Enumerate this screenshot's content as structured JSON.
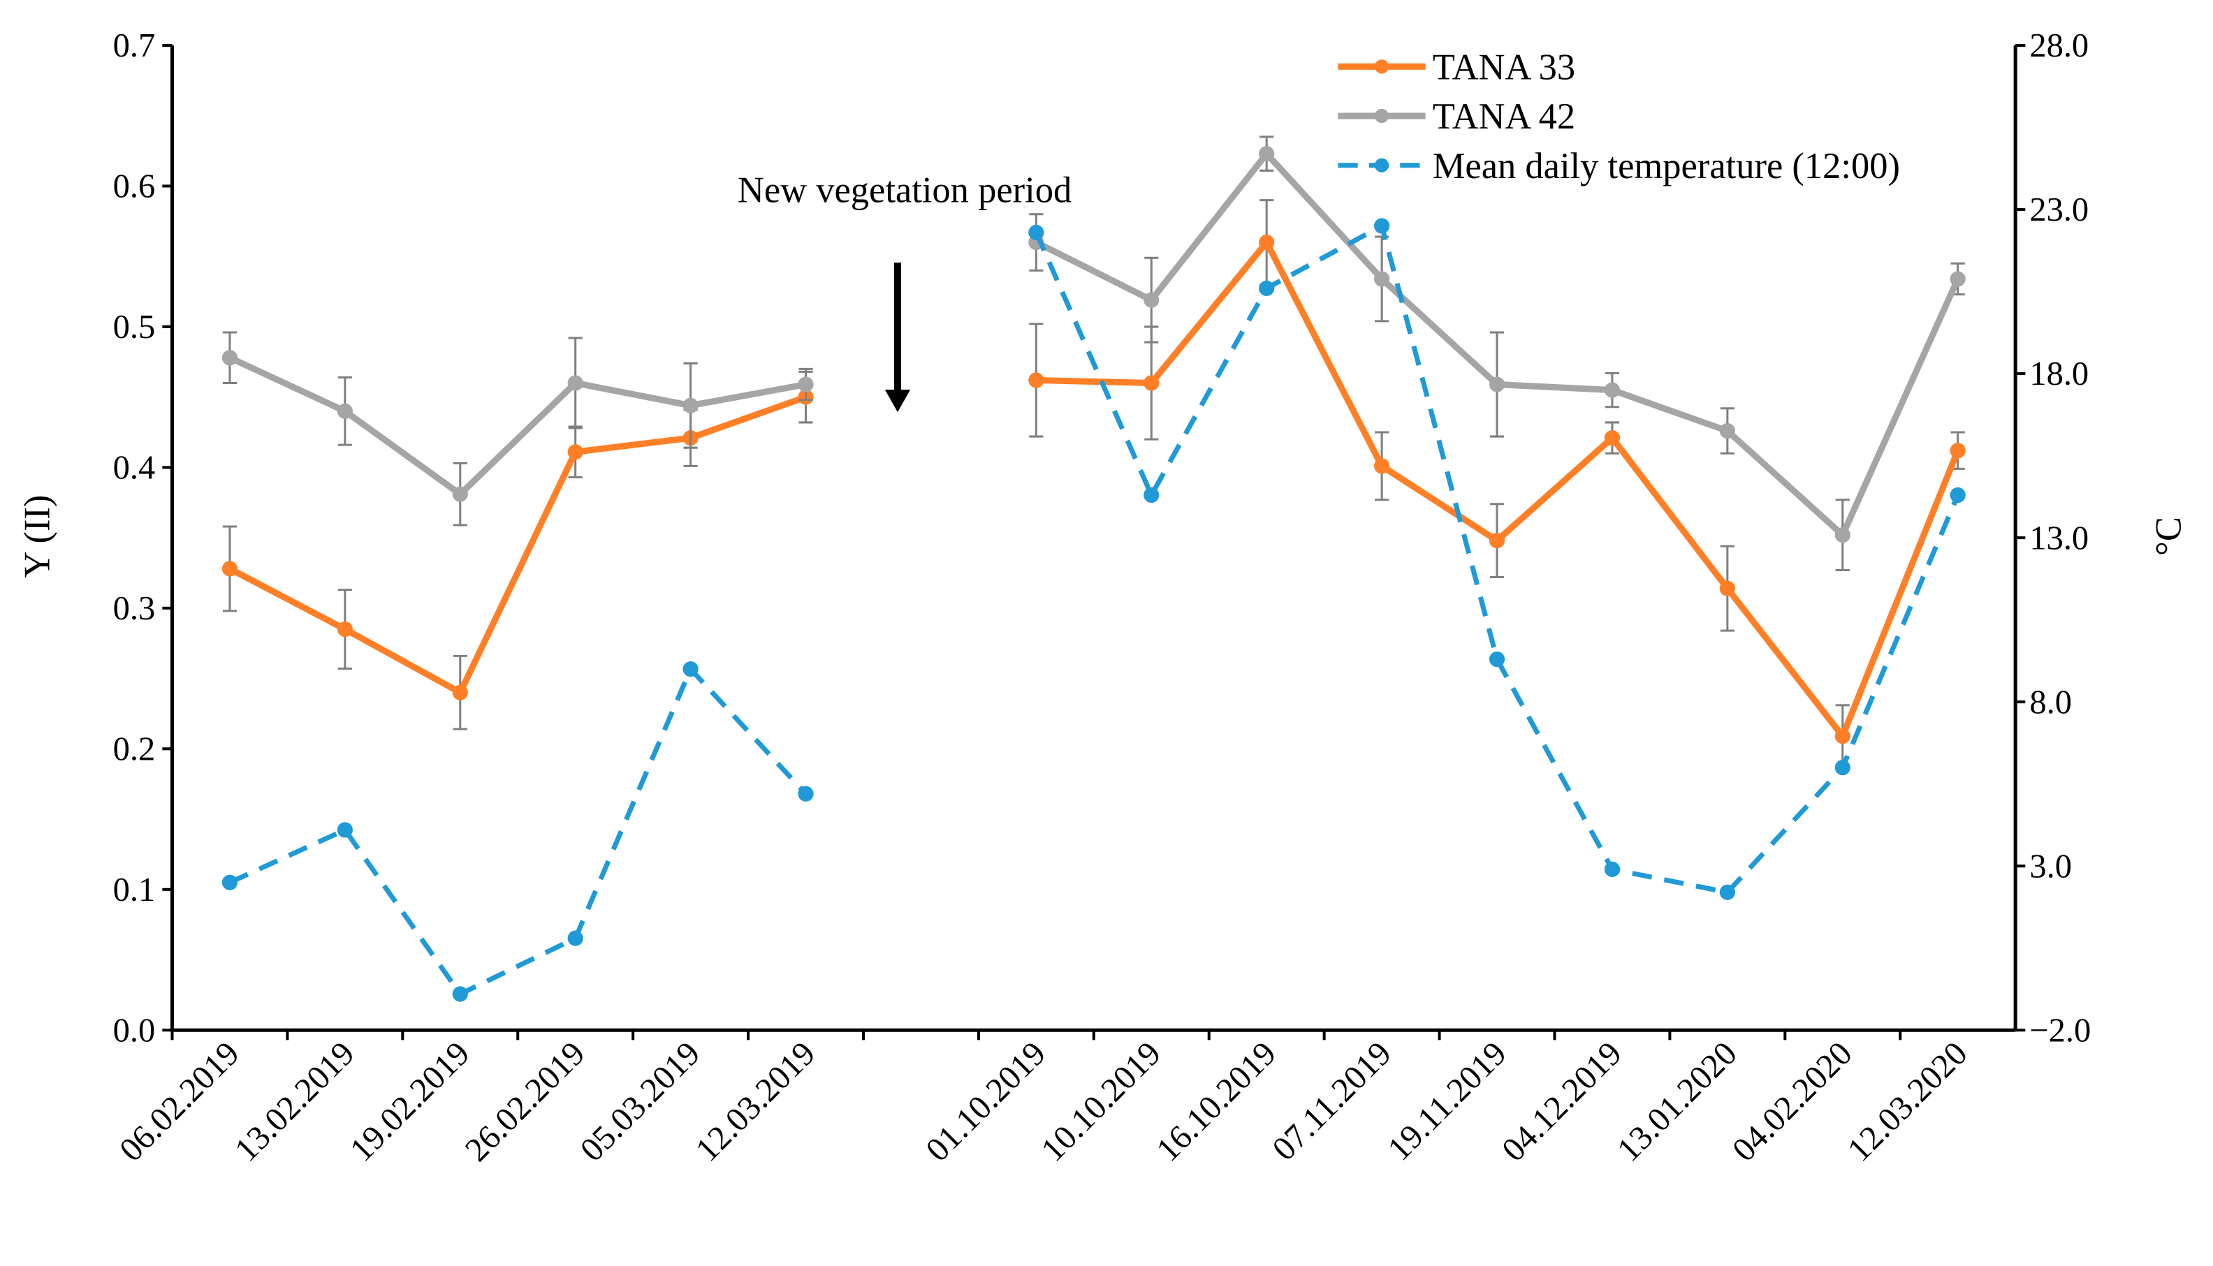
{
  "chart_data": {
    "type": "line",
    "title": "",
    "xlabel": "",
    "ylabel": "Y (II)",
    "y2label": "°C",
    "ylim": [
      0,
      0.7
    ],
    "y2lim": [
      -2,
      28
    ],
    "yticks": [
      "0.0",
      "0.1",
      "0.2",
      "0.3",
      "0.4",
      "0.5",
      "0.6",
      "0.7"
    ],
    "y2ticks": [
      "−2.0",
      "3.0",
      "8.0",
      "13.0",
      "18.0",
      "23.0",
      "28.0"
    ],
    "categories": [
      "06.02.2019",
      "13.02.2019",
      "19.02.2019",
      "26.02.2019",
      "05.03.2019",
      "12.03.2019",
      "",
      "01.10.2019",
      "10.10.2019",
      "16.10.2019",
      "07.11.2019",
      "19.11.2019",
      "04.12.2019",
      "13.01.2020",
      "04.02.2020",
      "12.03.2020"
    ],
    "series": [
      {
        "name": "TANA 33",
        "axis": "left",
        "color": "#FF7F27",
        "style": "solid",
        "values": [
          0.328,
          0.285,
          0.24,
          0.411,
          0.421,
          0.45,
          null,
          0.462,
          0.46,
          0.56,
          0.401,
          0.348,
          0.421,
          0.314,
          0.209,
          0.412
        ],
        "errors": [
          0.03,
          0.028,
          0.026,
          0.018,
          0.02,
          0.018,
          null,
          0.04,
          0.04,
          0.03,
          0.024,
          0.026,
          0.011,
          0.03,
          0.022,
          0.013
        ]
      },
      {
        "name": "TANA 42",
        "axis": "left",
        "color": "#A5A5A5",
        "style": "solid",
        "values": [
          0.478,
          0.44,
          0.381,
          0.46,
          0.444,
          0.459,
          null,
          0.56,
          0.519,
          0.623,
          0.534,
          0.459,
          0.455,
          0.426,
          0.352,
          0.534
        ],
        "errors": [
          0.018,
          0.024,
          0.022,
          0.032,
          0.03,
          0.011,
          null,
          0.02,
          0.03,
          0.012,
          0.03,
          0.037,
          0.012,
          0.016,
          0.025,
          0.011
        ]
      },
      {
        "name": "Mean daily temperature (12:00)",
        "axis": "right",
        "color": "#1F9AD6",
        "style": "dashed",
        "values": [
          2.5,
          4.1,
          -0.9,
          0.8,
          9.0,
          5.2,
          null,
          22.3,
          14.3,
          20.6,
          22.5,
          9.3,
          2.9,
          2.2,
          6.0,
          14.3
        ]
      }
    ],
    "legend_position": "top-right",
    "annotation": "New vegetation period",
    "grid": false
  }
}
